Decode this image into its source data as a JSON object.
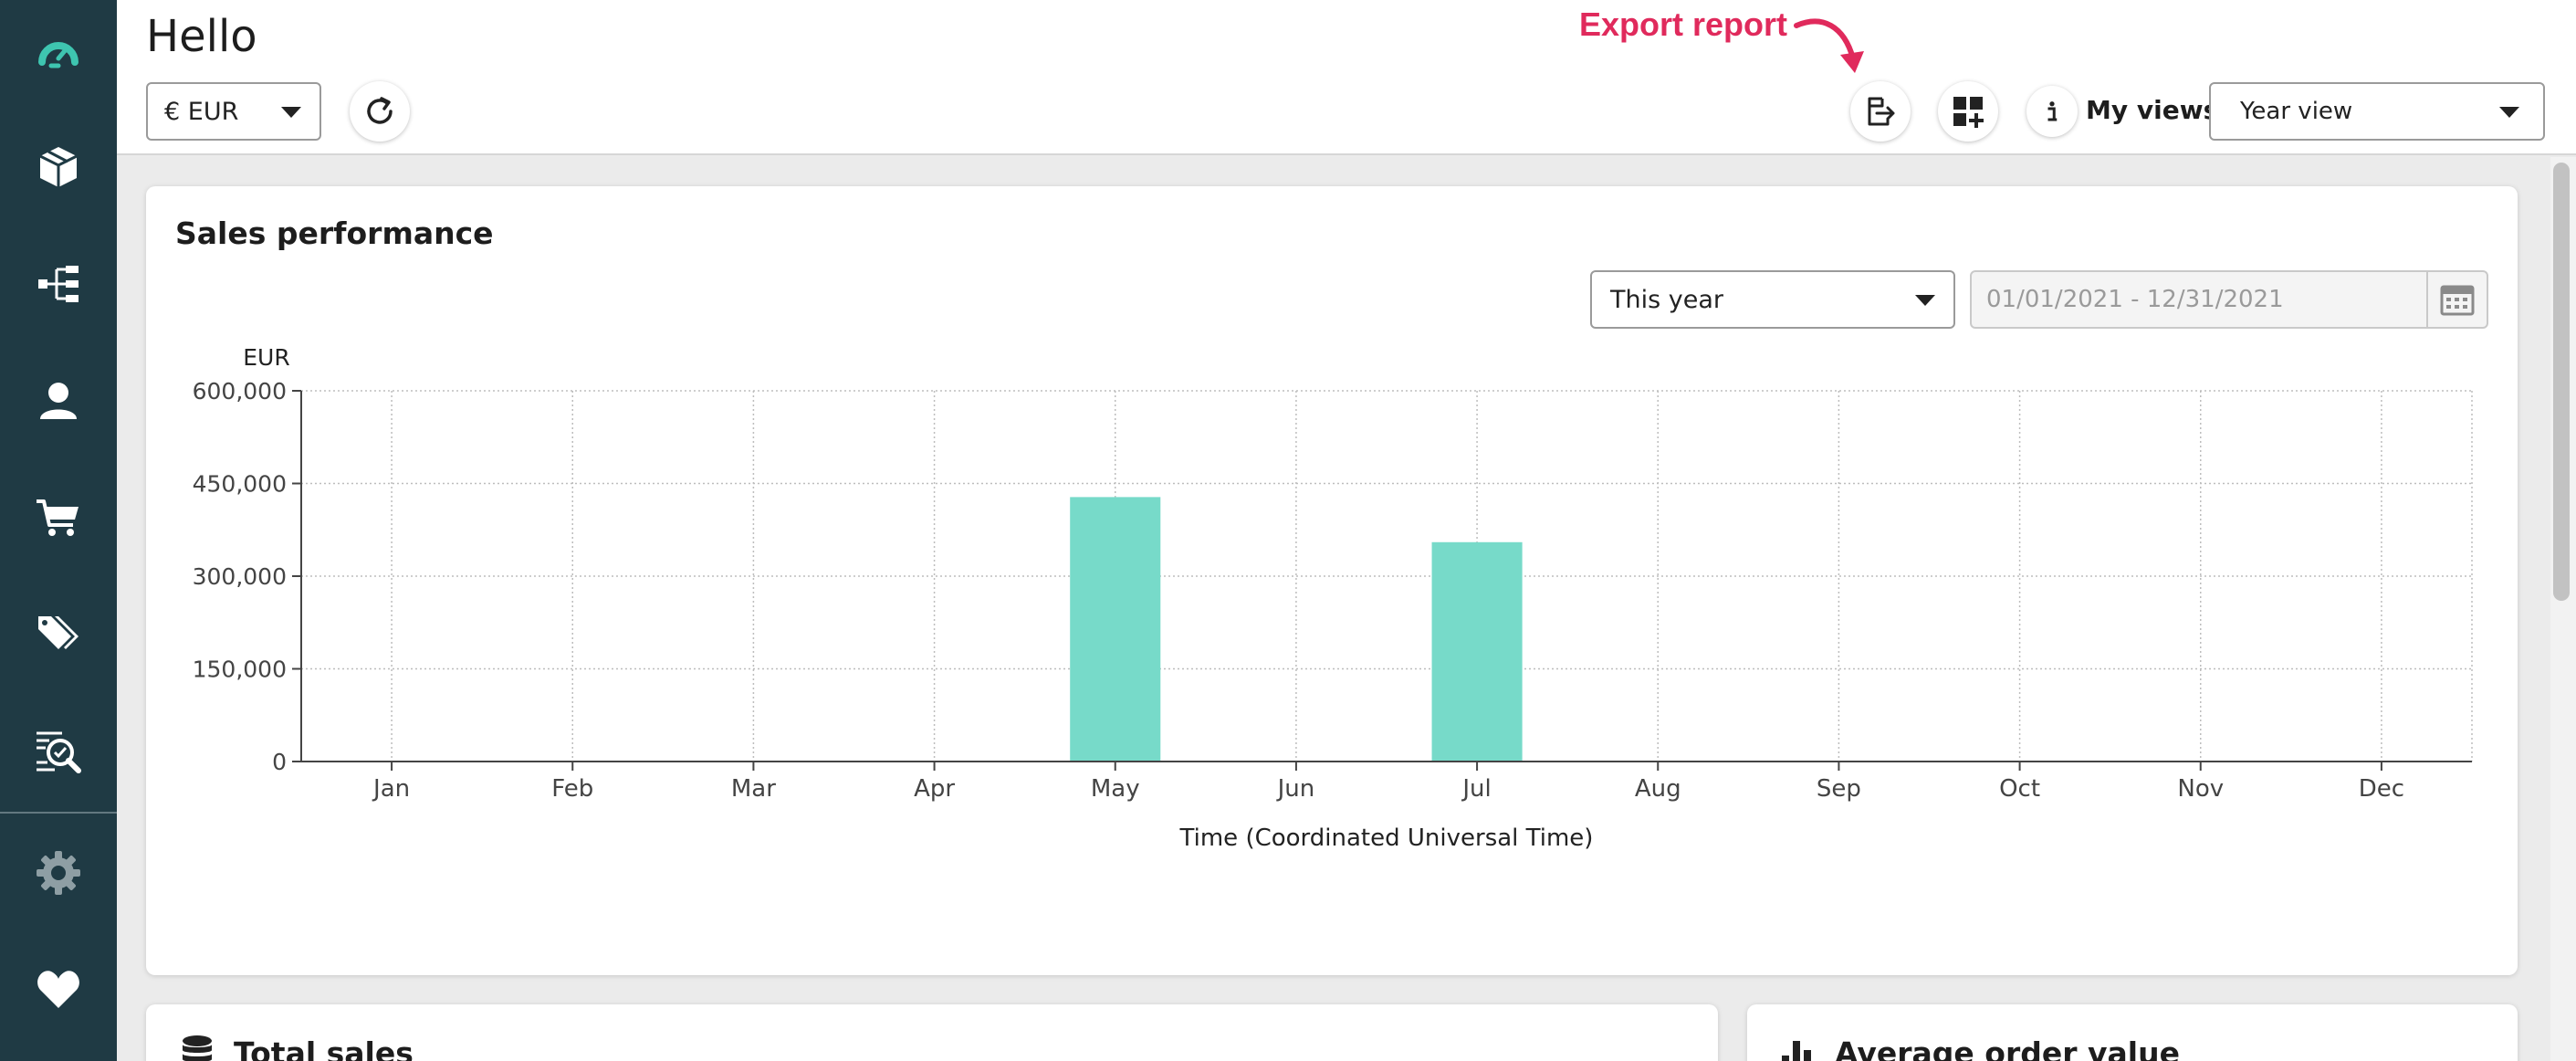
{
  "sidebar": {
    "items": [
      {
        "icon": "dashboard-gauge-icon",
        "name": "sidebar-item-dashboard"
      },
      {
        "icon": "box-icon",
        "name": "sidebar-item-products"
      },
      {
        "icon": "hierarchy-icon",
        "name": "sidebar-item-categories"
      },
      {
        "icon": "user-icon",
        "name": "sidebar-item-customers"
      },
      {
        "icon": "cart-icon",
        "name": "sidebar-item-orders"
      },
      {
        "icon": "tags-icon",
        "name": "sidebar-item-promotions"
      },
      {
        "icon": "analytics-icon",
        "name": "sidebar-item-analytics"
      },
      {
        "icon": "gear-icon",
        "name": "sidebar-item-settings"
      },
      {
        "icon": "heart-icon",
        "name": "sidebar-item-favorites"
      }
    ]
  },
  "header": {
    "title": "Hello",
    "currency": "€ EUR",
    "export_hint": "Export report",
    "views_label": "My views",
    "views_selected": "Year view"
  },
  "sales_card": {
    "title": "Sales performance",
    "period_selected": "This year",
    "date_range": "01/01/2021 - 12/31/2021"
  },
  "total_card": {
    "title": "Total sales"
  },
  "aov_card": {
    "title": "Average order value"
  },
  "colors": {
    "sidebar": "#1f3a44",
    "accent": "#77dac9",
    "brand_icon": "#3ec5b0",
    "export_hint": "#e02a5c"
  },
  "chart_data": {
    "type": "bar",
    "ylabel_unit": "EUR",
    "xlabel": "Time (Coordinated Universal Time)",
    "categories": [
      "Jan",
      "Feb",
      "Mar",
      "Apr",
      "May",
      "Jun",
      "Jul",
      "Aug",
      "Sep",
      "Oct",
      "Nov",
      "Dec"
    ],
    "values": [
      0,
      1000,
      0,
      0,
      428000,
      0,
      355000,
      0,
      0,
      0,
      0,
      0
    ],
    "ylim": [
      0,
      600000
    ],
    "yticks": [
      0,
      150000,
      300000,
      450000,
      600000
    ],
    "ytick_labels": [
      "0",
      "150,000",
      "300,000",
      "450,000",
      "600,000"
    ],
    "grid": true,
    "bar_color": "#77dac9"
  }
}
